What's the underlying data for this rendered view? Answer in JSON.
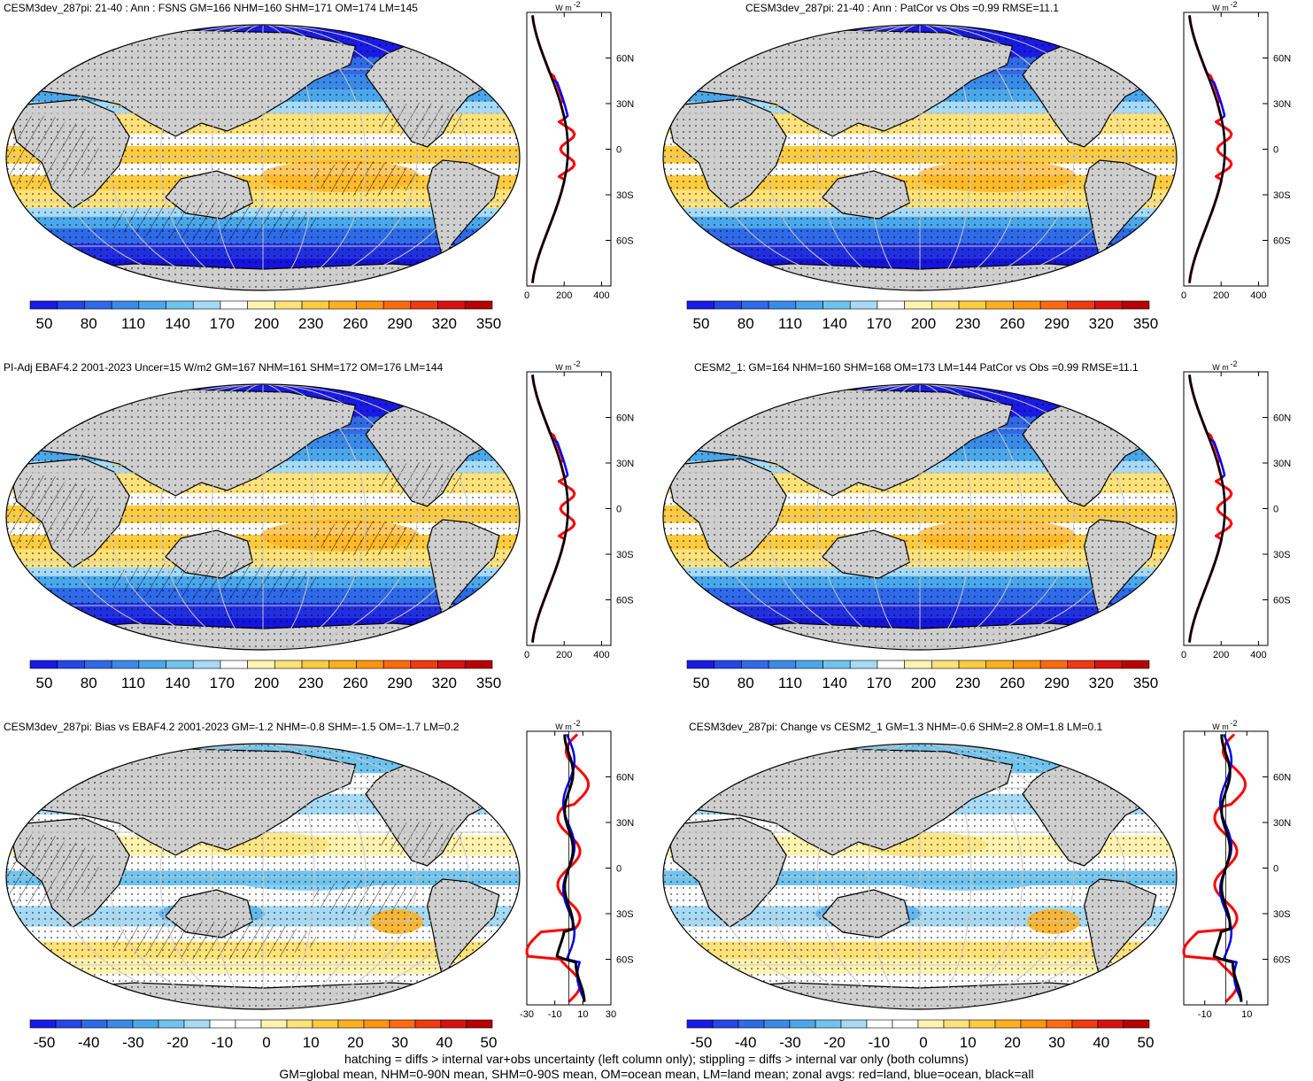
{
  "panels": [
    {
      "title": "CESM3dev_287pi: 21-40 : Ann : FSNS GM=166 NHM=160 SHM=171 OM=174 LM=145",
      "kind": "abs",
      "hatch": true,
      "colorbar_labels": [
        "50",
        "80",
        "110",
        "140",
        "170",
        "200",
        "230",
        "260",
        "290",
        "320",
        "350"
      ],
      "zonal_x_ticks": [
        "0",
        "200",
        "400"
      ],
      "zonal_x_range": [
        0,
        450
      ]
    },
    {
      "title": "CESM3dev_287pi: 21-40 : Ann : PatCor vs Obs =0.99 RMSE=11.1",
      "kind": "abs",
      "hatch": false,
      "colorbar_labels": [
        "50",
        "80",
        "110",
        "140",
        "170",
        "200",
        "230",
        "260",
        "290",
        "320",
        "350"
      ],
      "zonal_x_ticks": [
        "0",
        "200",
        "400"
      ],
      "zonal_x_range": [
        0,
        450
      ]
    },
    {
      "title": "PI-Adj EBAF4.2 2001-2023 Uncer=15 W/m2 GM=167 NHM=161 SHM=172 OM=176 LM=144",
      "kind": "abs",
      "hatch": true,
      "colorbar_labels": [
        "50",
        "80",
        "110",
        "140",
        "170",
        "200",
        "230",
        "260",
        "290",
        "320",
        "350"
      ],
      "zonal_x_ticks": [
        "0",
        "200",
        "400"
      ],
      "zonal_x_range": [
        0,
        450
      ]
    },
    {
      "title": "CESM2_1: GM=164 NHM=160 SHM=168 OM=173 LM=144 PatCor vs Obs =0.99 RMSE=11.1",
      "kind": "abs",
      "hatch": false,
      "colorbar_labels": [
        "50",
        "80",
        "110",
        "140",
        "170",
        "200",
        "230",
        "260",
        "290",
        "320",
        "350"
      ],
      "zonal_x_ticks": [
        "0",
        "200",
        "400"
      ],
      "zonal_x_range": [
        0,
        450
      ]
    },
    {
      "title": "CESM3dev_287pi: Bias vs EBAF4.2 2001-2023 GM=-1.2 NHM=-0.8 SHM=-1.5 OM=-1.7 LM=0.2",
      "kind": "diff",
      "hatch": true,
      "colorbar_labels": [
        "-50",
        "-40",
        "-30",
        "-20",
        "-10",
        "0",
        "10",
        "20",
        "30",
        "40",
        "50"
      ],
      "zonal_x_ticks": [
        "-30",
        "-10",
        "10",
        "30"
      ],
      "zonal_x_range": [
        -30,
        30
      ]
    },
    {
      "title": "CESM3dev_287pi: Change vs CESM2_1 GM=1.3 NHM=-0.6 SHM=2.8 OM=1.8 LM=0.1",
      "kind": "diff",
      "hatch": false,
      "colorbar_labels": [
        "-50",
        "-40",
        "-30",
        "-20",
        "-10",
        "0",
        "10",
        "20",
        "30",
        "40",
        "50"
      ],
      "zonal_x_ticks": [
        "-10",
        "10"
      ],
      "zonal_x_range": [
        -20,
        20
      ]
    }
  ],
  "zonal_unit": "W m",
  "zonal_unit_exp": "-2",
  "lat_labels": [
    "60N",
    "30N",
    "0",
    "30S",
    "60S"
  ],
  "lat_values": [
    60,
    30,
    0,
    -30,
    -60
  ],
  "colors": {
    "abs_scale": [
      "#1a1ae6",
      "#2546e8",
      "#2f6ae8",
      "#3a8ae8",
      "#4aa8ea",
      "#6ec4ef",
      "#a6daf5",
      "#ffffff",
      "#fff3b0",
      "#ffe27a",
      "#ffcc40",
      "#ffb020",
      "#ff9410",
      "#ff6a10",
      "#f03a10",
      "#d81010",
      "#b80000"
    ],
    "diff_scale": [
      "#1a1ae6",
      "#2546e8",
      "#2f6ae8",
      "#3a8ae8",
      "#4aa8ea",
      "#6ec4ef",
      "#a6daf5",
      "#ffffff",
      "#ffffff",
      "#fff3b0",
      "#ffe27a",
      "#ffcc40",
      "#ffb020",
      "#ff9410",
      "#ff6a10",
      "#f03a10",
      "#d81010",
      "#b80000"
    ],
    "land": "#cfcfcf",
    "line_land": "#ff0000",
    "line_ocean": "#0000ff",
    "line_all": "#000000"
  },
  "footer": {
    "line1": "hatching = diffs > internal var+obs uncertainty (left column only); stippling = diffs > internal var only (both columns)",
    "line2": "GM=global mean, NHM=0-90N mean, SHM=0-90S mean, OM=ocean mean, LM=land mean; zonal avgs: red=land, blue=ocean, black=all"
  }
}
